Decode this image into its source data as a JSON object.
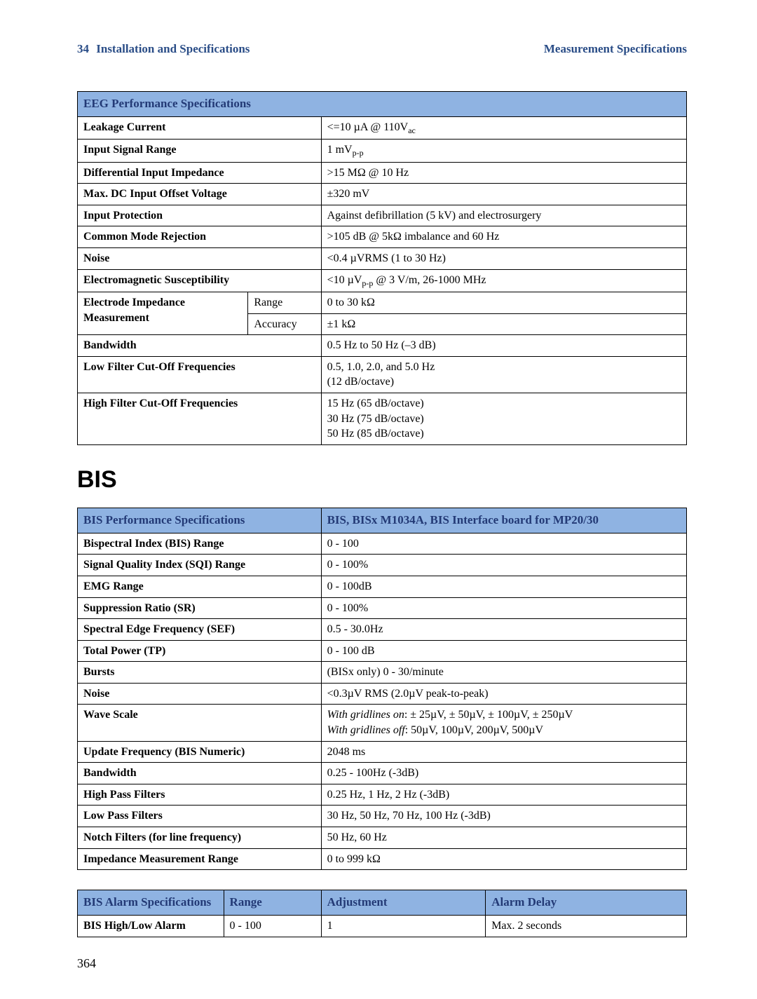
{
  "header": {
    "chapterNum": "34",
    "chapterTitle": "Installation and Specifications",
    "subsection": "Measurement Specifications"
  },
  "pageNumber": "364",
  "sectionHeading": "BIS",
  "colors": {
    "headerBlue": "#8fb3e2",
    "textBlue": "#233a76"
  },
  "table1": {
    "title": "EEG Performance Specifications",
    "rows": [
      {
        "label": "Leakage Current",
        "value_html": "<=10 µA @ 110V<sub>ac</sub>"
      },
      {
        "label": "Input Signal Range",
        "value_html": "1 mV<sub>p-p</sub>"
      },
      {
        "label": "Differential Input Impedance",
        "value_html": ">15 MΩ @ 10 Hz"
      },
      {
        "label": "Max. DC Input Offset Voltage",
        "value_html": "±320 mV"
      },
      {
        "label": "Input Protection",
        "value_html": "Against defibrillation (5 kV) and electrosurgery"
      },
      {
        "label": "Common Mode Rejection",
        "value_html": ">105 dB @ 5kΩ imbalance and 60 Hz"
      },
      {
        "label": "Noise",
        "value_html": "<0.4 µVRMS (1 to 30 Hz)"
      },
      {
        "label": "Electromagnetic Susceptibility",
        "value_html": "<10 µV<sub>p-p</sub> @ 3 V/m, 26-1000 MHz"
      }
    ],
    "impedance": {
      "groupLabel": "Electrode Impedance Measurement",
      "subrows": [
        {
          "sublabel": "Range",
          "value": "0 to 30 kΩ"
        },
        {
          "sublabel": "Accuracy",
          "value": "±1 kΩ"
        }
      ]
    },
    "rows2": [
      {
        "label": "Bandwidth",
        "value_html": "0.5 Hz to 50 Hz (–3 dB)"
      },
      {
        "label": "Low Filter Cut-Off Frequencies",
        "value_html": "0.5, 1.0, 2.0, and 5.0 Hz<br>(12 dB/octave)"
      },
      {
        "label": "High Filter Cut-Off Frequencies",
        "value_html": "15 Hz (65 dB/octave)<br>30 Hz (75 dB/octave)<br>50 Hz (85 dB/octave)"
      }
    ]
  },
  "table2": {
    "titleLeft": "BIS Performance Specifications",
    "titleRight": "BIS, BISx M1034A, BIS Interface board for MP20/30",
    "rows": [
      {
        "label": "Bispectral Index (BIS) Range",
        "value_html": "0 - 100",
        "bold": true
      },
      {
        "label": "Signal Quality Index (SQI) Range",
        "value_html": "0 - 100%",
        "bold": true
      },
      {
        "label": "EMG Range",
        "value_html": "0 - 100dB",
        "bold": true
      },
      {
        "label": "Suppression Ratio (SR)",
        "value_html": "0 - 100%",
        "bold": true
      },
      {
        "label": "Spectral Edge Frequency (SEF)",
        "value_html": "0.5 - 30.0Hz",
        "bold": true
      },
      {
        "label": "Total Power (TP)",
        "value_html": "0 - 100 dB",
        "bold": true
      },
      {
        "label": "Bursts",
        "value_html": "(BISx only) 0 - 30/minute",
        "bold": true
      },
      {
        "label": "Noise",
        "value_html": "<0.3µV RMS (2.0µV peak-to-peak)",
        "bold": true
      },
      {
        "label": "Wave Scale",
        "value_html": "<span class=\"italic\">With gridlines on</span>: ± 25µV, ± 50µV, ± 100µV, ± 250µV<br><span class=\"italic\">With gridlines off</span>: 50µV, 100µV, 200µV, 500µV",
        "bold": true
      },
      {
        "label": "Update Frequency (BIS Numeric)",
        "value_html": "2048 ms",
        "bold": true
      },
      {
        "label": "Bandwidth",
        "value_html": "0.25 - 100Hz (-3dB)",
        "bold": true
      },
      {
        "label": "High Pass Filters",
        "value_html": "0.25 Hz, 1 Hz, 2 Hz (-3dB)",
        "bold": true
      },
      {
        "label": "Low Pass Filters",
        "value_html": "30 Hz, 50 Hz, 70 Hz, 100 Hz (-3dB)",
        "bold": true
      },
      {
        "label": "Notch Filters (for line frequency)",
        "value_html": "50 Hz, 60 Hz",
        "bold": true
      },
      {
        "label": "Impedance Measurement Range",
        "value_html": "0 to 999 kΩ",
        "bold": true
      }
    ]
  },
  "table3": {
    "headers": [
      "BIS Alarm Specifications",
      "Range",
      "Adjustment",
      "Alarm Delay"
    ],
    "rows": [
      {
        "c1": "BIS High/Low Alarm",
        "c2": "0 - 100",
        "c3": "1",
        "c4": "Max. 2 seconds"
      }
    ]
  }
}
